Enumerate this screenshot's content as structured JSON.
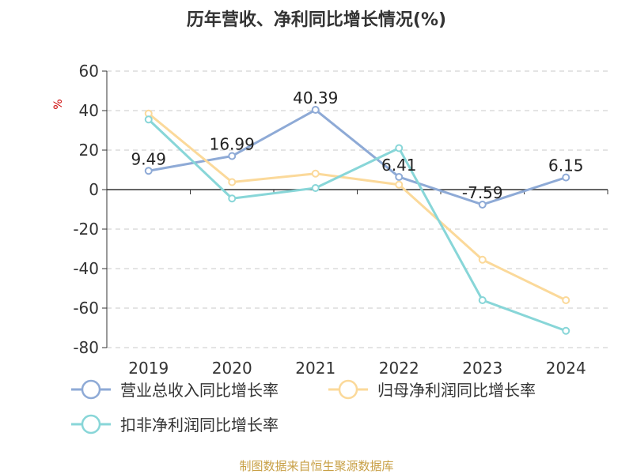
{
  "chart_data": {
    "type": "line",
    "title": "历年营收、净利同比增长情况(%)",
    "ylabel": "%",
    "ylim": [
      -80,
      60
    ],
    "yticks": [
      60,
      40,
      20,
      0,
      -20,
      -40,
      -60,
      -80
    ],
    "categories": [
      "2019",
      "2020",
      "2021",
      "2022",
      "2023",
      "2024"
    ],
    "grid": true,
    "legend_position": "bottom",
    "series": [
      {
        "name": "营业总收入同比增长率",
        "color": "#8eaad6",
        "values": [
          9.49,
          16.99,
          40.39,
          6.41,
          -7.59,
          6.15
        ],
        "labels": [
          "9.49",
          "16.99",
          "40.39",
          "6.41",
          "-7.59",
          "6.15"
        ]
      },
      {
        "name": "归母净利润同比增长率",
        "color": "#fbd99a",
        "values": [
          38.5,
          3.8,
          8.1,
          2.5,
          -35.5,
          -56
        ]
      },
      {
        "name": "扣非净利润同比增长率",
        "color": "#88d6d8",
        "values": [
          35.5,
          -4.5,
          0.8,
          21,
          -56,
          -71.5
        ]
      }
    ]
  },
  "footer": "制图数据来自恒生聚源数据库"
}
